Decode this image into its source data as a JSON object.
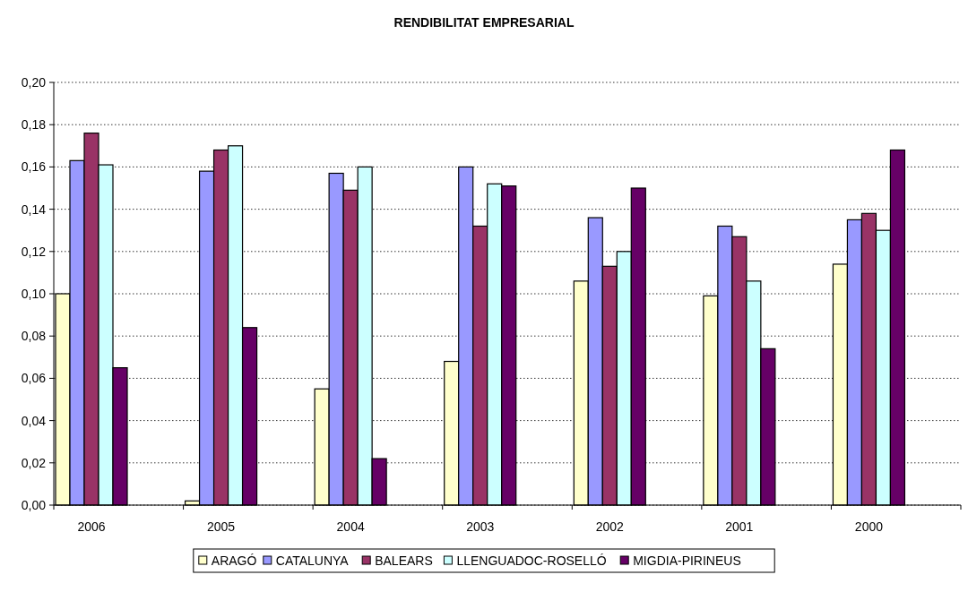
{
  "chart_data": {
    "type": "bar",
    "title": "RENDIBILITAT EMPRESARIAL",
    "categories": [
      "2006",
      "2005",
      "2004",
      "2003",
      "2002",
      "2001",
      "2000"
    ],
    "series": [
      {
        "name": "ARAGÓ",
        "color": "#ffffcc",
        "values": [
          0.1,
          0.002,
          0.055,
          0.068,
          0.106,
          0.099,
          0.114
        ]
      },
      {
        "name": "CATALUNYA",
        "color": "#9999ff",
        "values": [
          0.163,
          0.158,
          0.157,
          0.16,
          0.136,
          0.132,
          0.135
        ]
      },
      {
        "name": "BALEARS",
        "color": "#993366",
        "values": [
          0.176,
          0.168,
          0.149,
          0.132,
          0.113,
          0.127,
          0.138
        ]
      },
      {
        "name": "LLENGUADOC-ROSELLÓ",
        "color": "#ccffff",
        "values": [
          0.161,
          0.17,
          0.16,
          0.152,
          0.12,
          0.106,
          0.13
        ]
      },
      {
        "name": "MIGDIA-PIRINEUS",
        "color": "#660066",
        "values": [
          0.065,
          0.084,
          0.022,
          0.151,
          0.15,
          0.074,
          0.168
        ]
      }
    ],
    "ylim": [
      0,
      0.2
    ],
    "yticks": [
      {
        "value": 0,
        "label": "0,00"
      },
      {
        "value": 0.02,
        "label": "0,02"
      },
      {
        "value": 0.04,
        "label": "0,04"
      },
      {
        "value": 0.06,
        "label": "0,06"
      },
      {
        "value": 0.08,
        "label": "0,08"
      },
      {
        "value": 0.1,
        "label": "0,10"
      },
      {
        "value": 0.12,
        "label": "0,12"
      },
      {
        "value": 0.14,
        "label": "0,14"
      },
      {
        "value": 0.16,
        "label": "0,16"
      },
      {
        "value": 0.18,
        "label": "0,18"
      },
      {
        "value": 0.2,
        "label": "0,20"
      }
    ],
    "grid": "y",
    "legend": "bottom"
  }
}
